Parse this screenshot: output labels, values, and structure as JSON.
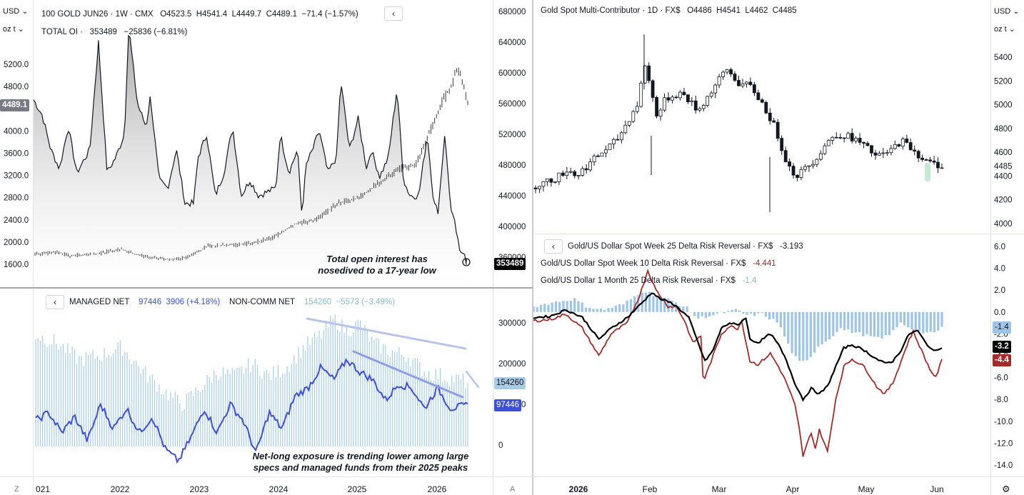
{
  "left_chart": {
    "currency": "USD",
    "unit": "oz t",
    "series_name": "100 GOLD JUN26",
    "interval": "1W",
    "exchange": "CMX",
    "open": "O4523.5",
    "high": "H4541.4",
    "low": "L4449.7",
    "close": "C4489.1",
    "change": "−71.4 (−1.57%)",
    "oi_label": "TOTAL OI",
    "oi_value": "353489",
    "oi_change": "−25836 (−6.81%)",
    "price_last": "4489.1",
    "oi_last": "353489",
    "left_ticks": [
      "5200.0",
      "4800.0",
      "4400.0",
      "4000.0",
      "3600.0",
      "3200.0",
      "2800.0",
      "2400.0",
      "2000.0",
      "1600.0"
    ],
    "right_ticks": [
      "680000",
      "640000",
      "600000",
      "560000",
      "520000",
      "480000",
      "440000",
      "400000",
      "360000"
    ],
    "annotation_1": "Total open interest has",
    "annotation_2": "nosedived to a 17-year low"
  },
  "cot_chart": {
    "managed_label": "MANAGED NET",
    "managed_value": "97446",
    "managed_change": "3906 (+4.18%)",
    "noncomm_label": "NON-COMM NET",
    "noncomm_value": "154260",
    "noncomm_change": "−5573 (−3.49%)",
    "right_ticks": [
      "300000",
      "200000",
      "100000",
      "0"
    ],
    "managed_last": "97446",
    "noncomm_last": "154260",
    "annotation_1": "Net-long exposure is trending lower among large",
    "annotation_2": "specs and managed funds from their 2025 peaks",
    "x_ticks": [
      "021",
      "2022",
      "2023",
      "2024",
      "2025",
      "2026"
    ],
    "z_label": "Z",
    "a_label": "A"
  },
  "right_chart": {
    "currency": "USD",
    "unit": "oz t",
    "title": "Gold Spot Multi-Contributor",
    "interval": "1D",
    "source": "FX$",
    "open": "O4486",
    "high": "H4541",
    "low": "L4462",
    "close": "C4485",
    "ticks": [
      "5400",
      "5200",
      "5000",
      "4800",
      "4600",
      "4485",
      "4400",
      "4200",
      "4000"
    ]
  },
  "rr_chart": {
    "line1_label": "Gold/US Dollar Spot Week 25 Delta Risk Reversal",
    "line1_src": "FX$",
    "line1_value": "-3.193",
    "line2_label": "Gold/US Dollar Spot Week 10 Delta Risk Reversal",
    "line2_src": "FX$",
    "line2_value": "-4.441",
    "line3_label": "Gold/US Dollar 1 Month 25 Delta Risk Reversal",
    "line3_src": "FX$",
    "line3_value": "-1.4",
    "ticks": [
      "6.0",
      "4.0",
      "2.0",
      "0.0",
      "-2.0",
      "-4.0",
      "-6.0",
      "-8.0",
      "-10.0",
      "-12.0",
      "-14.0"
    ],
    "last_bar": "-1.4",
    "last_black": "-3.2",
    "last_red": "-4.4",
    "x_ticks": [
      "2026",
      "Feb",
      "Mar",
      "Apr",
      "May",
      "Jun"
    ]
  },
  "colors": {
    "managed": "#3d4fd6",
    "noncomm_bars": "#a9cbe4",
    "rr_bars": "#9ec5e6",
    "rr_red": "#a52a2a",
    "rr_black": "#000000"
  },
  "chart_data": [
    {
      "type": "area",
      "title": "100 GOLD JUN26 · 1W · CMX with TOTAL OI",
      "x": [
        "2021",
        "2022",
        "2023",
        "2024",
        "2025",
        "2026"
      ],
      "series": [
        {
          "name": "TOTAL OI",
          "values_by_year": [
            520000,
            540000,
            470000,
            500000,
            620000,
            353489
          ]
        },
        {
          "name": "100 GOLD JUN26",
          "values_by_year": [
            1800,
            1850,
            1780,
            2050,
            2750,
            4489.1
          ]
        }
      ],
      "ylim_left": [
        1500,
        5400
      ],
      "ylim_right": [
        340000,
        690000
      ]
    },
    {
      "type": "bar",
      "title": "MANAGED NET / NON-COMM NET",
      "x": [
        "2021",
        "2022",
        "2023",
        "2024",
        "2025",
        "2026"
      ],
      "series": [
        {
          "name": "NON-COMM NET",
          "values_by_year": [
            220000,
            200000,
            150000,
            230000,
            300000,
            154260
          ]
        },
        {
          "name": "MANAGED NET",
          "values_by_year": [
            100000,
            110000,
            40000,
            130000,
            210000,
            97446
          ]
        }
      ],
      "ylim": [
        -50000,
        340000
      ]
    },
    {
      "type": "line",
      "title": "Gold Spot Multi-Contributor · 1D · FX$",
      "x": [
        "2026",
        "Feb",
        "Mar",
        "Apr",
        "May",
        "Jun"
      ],
      "values": [
        4380,
        5200,
        5300,
        4500,
        4750,
        4485
      ],
      "ylim": [
        3950,
        5550
      ]
    },
    {
      "type": "line",
      "title": "Gold/US Dollar Risk Reversals",
      "x": [
        "2026",
        "Feb",
        "Mar",
        "Apr",
        "May",
        "Jun"
      ],
      "series": [
        {
          "name": "Gold/US Dollar Spot Week 25 Delta Risk Reversal",
          "values": [
            0.5,
            1.5,
            -1.5,
            -8.0,
            -4.0,
            -3.193
          ]
        },
        {
          "name": "Gold/US Dollar Spot Week 10 Delta Risk Reversal",
          "values": [
            0.5,
            3.0,
            -2.5,
            -12.5,
            -6.0,
            -4.441
          ]
        },
        {
          "name": "Gold/US Dollar 1 Month 25 Delta Risk Reversal",
          "values": [
            0.8,
            1.5,
            -0.5,
            -5.0,
            -1.5,
            -1.4
          ]
        }
      ],
      "ylim": [
        -15,
        7
      ]
    }
  ]
}
